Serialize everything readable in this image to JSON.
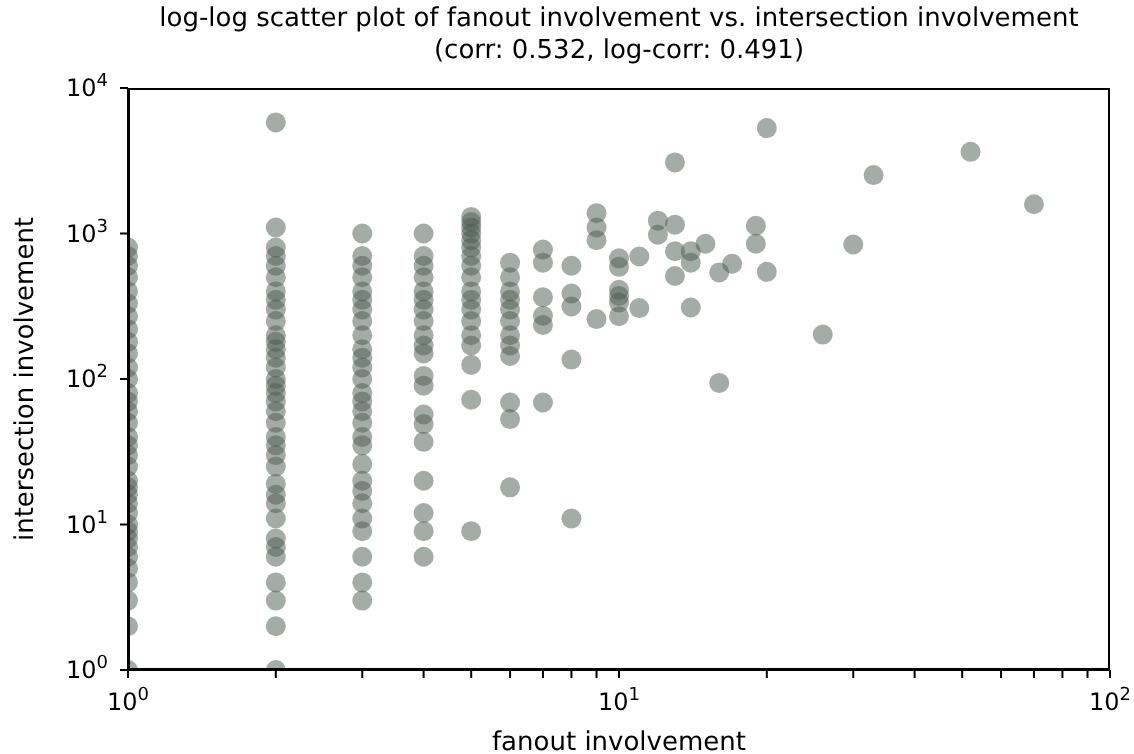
{
  "chart_data": {
    "type": "scatter",
    "title": "log-log scatter plot of fanout involvement vs. intersection involvement",
    "subtitle": "(corr: 0.532, log-corr: 0.491)",
    "xlabel": "fanout involvement",
    "ylabel": "intersection involvement",
    "log": "xy",
    "grid": false,
    "legend": false,
    "marker": "circle",
    "xlim": [
      1,
      100
    ],
    "ylim": [
      1,
      10000
    ],
    "xticks": [
      {
        "value": 1,
        "label": "10$^{0}$"
      },
      {
        "value": 2,
        "label": null
      },
      {
        "value": 3,
        "label": null
      },
      {
        "value": 4,
        "label": null
      },
      {
        "value": 5,
        "label": null
      },
      {
        "value": 6,
        "label": null
      },
      {
        "value": 7,
        "label": null
      },
      {
        "value": 8,
        "label": null
      },
      {
        "value": 9,
        "label": null
      },
      {
        "value": 10,
        "label": "10$^{1}$"
      },
      {
        "value": 20,
        "label": null
      },
      {
        "value": 30,
        "label": null
      },
      {
        "value": 40,
        "label": null
      },
      {
        "value": 50,
        "label": null
      },
      {
        "value": 60,
        "label": null
      },
      {
        "value": 70,
        "label": null
      },
      {
        "value": 80,
        "label": null
      },
      {
        "value": 90,
        "label": null
      },
      {
        "value": 100,
        "label": "10$^{2}$"
      }
    ],
    "yticks": [
      {
        "value": 1,
        "label": "10$^{0}$"
      },
      {
        "value": 10,
        "label": "10$^{1}$"
      },
      {
        "value": 100,
        "label": "10$^{2}$"
      },
      {
        "value": 1000,
        "label": "10$^{3}$"
      },
      {
        "value": 10000,
        "label": "10$^{4}$"
      }
    ],
    "series": [
      {
        "color": "#4a5a50",
        "x": [
          1,
          1,
          1,
          1,
          1,
          1,
          1,
          1,
          1,
          1,
          1,
          1,
          1,
          1,
          1,
          1,
          1,
          1,
          1,
          1,
          1,
          1,
          1,
          1,
          1,
          1,
          1,
          1,
          1,
          1,
          1,
          1,
          1,
          1,
          1,
          2,
          2,
          2,
          2,
          2,
          2,
          2,
          2,
          2,
          2,
          2,
          2,
          2,
          2,
          2,
          2,
          2,
          2,
          2,
          2,
          2,
          2,
          2,
          2,
          2,
          2,
          2,
          2,
          2,
          2,
          2,
          2,
          2,
          2,
          2,
          2,
          3,
          3,
          3,
          3,
          3,
          3,
          3,
          3,
          3,
          3,
          3,
          3,
          3,
          3,
          3,
          3,
          3,
          3,
          3,
          3,
          3,
          3,
          3,
          3,
          3,
          3,
          3,
          3,
          4,
          4,
          4,
          4,
          4,
          4,
          4,
          4,
          4,
          4,
          4,
          4,
          4,
          4,
          4,
          4,
          4,
          4,
          4,
          4,
          5,
          5,
          5,
          5,
          5,
          5,
          5,
          5,
          5,
          5,
          5,
          5,
          5,
          5,
          5,
          5,
          5,
          5,
          6,
          6,
          6,
          6,
          6,
          6,
          6,
          6,
          6,
          6,
          6,
          6,
          7,
          7,
          7,
          7,
          7,
          7,
          8,
          8,
          8,
          8,
          8,
          9,
          9,
          9,
          9,
          10,
          10,
          10,
          10,
          10,
          10,
          11,
          11,
          12,
          12,
          13,
          13,
          13,
          13,
          14,
          14,
          14,
          15,
          16,
          16,
          17,
          19,
          19,
          20,
          20,
          26,
          30,
          33,
          52,
          70
        ],
        "values": [
          1,
          2,
          3,
          4,
          5,
          6,
          7,
          8,
          9,
          10,
          12,
          14,
          16,
          18,
          20,
          25,
          30,
          35,
          40,
          50,
          60,
          70,
          80,
          100,
          120,
          150,
          180,
          220,
          270,
          330,
          400,
          500,
          600,
          700,
          800,
          1,
          2,
          3,
          4,
          6,
          7,
          8,
          11,
          14,
          16,
          19,
          25,
          30,
          35,
          40,
          50,
          60,
          70,
          80,
          90,
          100,
          120,
          140,
          160,
          180,
          200,
          250,
          300,
          350,
          400,
          500,
          600,
          700,
          800,
          1100,
          5800,
          3,
          4,
          6,
          9,
          11,
          14,
          17,
          20,
          26,
          35,
          40,
          50,
          60,
          70,
          80,
          100,
          120,
          140,
          160,
          200,
          250,
          300,
          350,
          400,
          500,
          600,
          700,
          1000,
          6,
          9,
          12,
          20,
          37,
          49,
          57,
          90,
          105,
          150,
          170,
          200,
          250,
          300,
          350,
          400,
          500,
          600,
          700,
          1000,
          9,
          72,
          125,
          170,
          200,
          250,
          300,
          350,
          400,
          500,
          600,
          700,
          800,
          900,
          1000,
          1100,
          1200,
          1300,
          18,
          53,
          69,
          144,
          170,
          200,
          250,
          300,
          350,
          400,
          500,
          630,
          69,
          235,
          272,
          365,
          630,
          775,
          11,
          136,
          315,
          387,
          600,
          258,
          900,
          1100,
          1380,
          270,
          335,
          372,
          410,
          590,
          675,
          307,
          695,
          980,
          1225,
          510,
          755,
          1150,
          3080,
          310,
          630,
          755,
          850,
          94,
          540,
          620,
          850,
          1130,
          545,
          5300,
          202,
          840,
          2520,
          3640,
          1590
        ]
      }
    ]
  }
}
